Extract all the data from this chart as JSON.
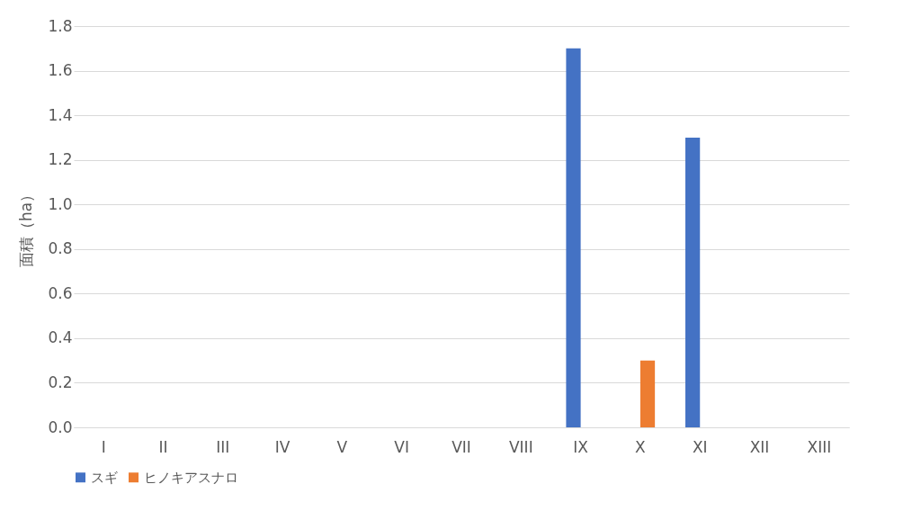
{
  "chart_data": {
    "type": "bar",
    "ylabel": "面積（ha）",
    "categories": [
      "I",
      "II",
      "III",
      "IV",
      "V",
      "VI",
      "VII",
      "VIII",
      "IX",
      "X",
      "XI",
      "XII",
      "XIII"
    ],
    "series": [
      {
        "name": "スギ",
        "color": "#4472c4",
        "values": [
          0,
          0,
          0,
          0,
          0,
          0,
          0,
          0,
          1.7,
          0,
          1.3,
          0,
          0
        ]
      },
      {
        "name": "ヒノキアスナロ",
        "color": "#ed7d31",
        "values": [
          0,
          0,
          0,
          0,
          0,
          0,
          0,
          0,
          0,
          0.3,
          0,
          0,
          0
        ]
      }
    ],
    "ylim": [
      0,
      1.8
    ],
    "yticks": [
      {
        "value": 0,
        "label": "0.0"
      },
      0.2,
      0.4,
      0.6,
      0.8,
      {
        "value": 1,
        "label": "1.0"
      },
      1.2,
      1.4,
      1.6,
      1.8
    ],
    "grid": "y",
    "legend": "bottom"
  }
}
